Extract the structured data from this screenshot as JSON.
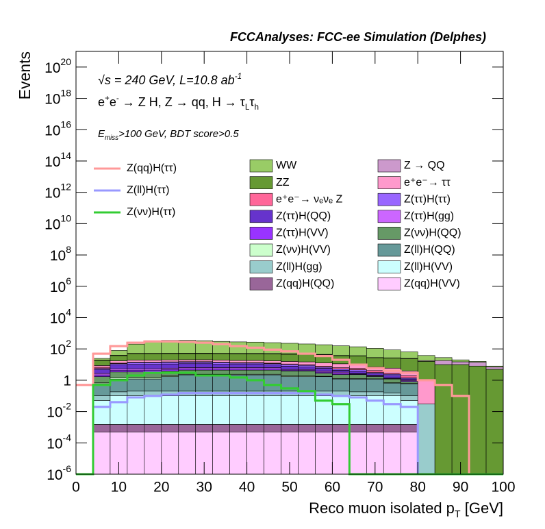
{
  "chart_data": {
    "type": "stacked-histogram",
    "title": "FCCAnalyses: FCC-ee Simulation (Delphes)",
    "annotations": [
      [
        {
          "t": "√s = 240 GeV, L=10.8 ab"
        },
        {
          "t": "-1",
          "sup": true
        }
      ],
      [
        {
          "t": "e"
        },
        {
          "t": "+",
          "sup": true
        },
        {
          "t": "e"
        },
        {
          "t": "-",
          "sup": true
        },
        {
          "t": " → Z H, Z  → qq, H  → τ"
        },
        {
          "t": "L",
          "sub": true
        },
        {
          "t": "τ"
        },
        {
          "t": "h",
          "sub": true
        }
      ],
      [
        {
          "t": "E"
        },
        {
          "t": "miss",
          "sub": true
        },
        {
          "t": ">100 GeV, BDT score>0.5"
        }
      ]
    ],
    "y_label": "Events",
    "x_label": [
      {
        "t": "Reco muon isolated p"
      },
      {
        "t": "T",
        "sub": true
      },
      {
        "t": " [GeV]"
      }
    ],
    "log_y": true,
    "xlim": [
      0,
      100
    ],
    "xticks": [
      0,
      10,
      20,
      30,
      40,
      50,
      60,
      70,
      80,
      90,
      100
    ],
    "ylim": [
      1e-06,
      1e+21
    ],
    "yticks": [
      {
        "value": 1e-06,
        "label": "10",
        "exp": "-6"
      },
      {
        "value": 0.0001,
        "label": "10",
        "exp": "-4"
      },
      {
        "value": 0.01,
        "label": "10",
        "exp": "-2"
      },
      1,
      {
        "value": 100.0,
        "label": "10",
        "exp": "2"
      },
      {
        "value": 10000.0,
        "label": "10",
        "exp": "4"
      },
      {
        "value": 1000000.0,
        "label": "10",
        "exp": "6"
      },
      {
        "value": 100000000.0,
        "label": "10",
        "exp": "8"
      },
      {
        "value": 10000000000.0,
        "label": "10",
        "exp": "10"
      },
      {
        "value": 1000000000000.0,
        "label": "10",
        "exp": "12"
      },
      {
        "value": 100000000000000.0,
        "label": "10",
        "exp": "14"
      },
      {
        "value": 1e+16,
        "label": "10",
        "exp": "16"
      },
      {
        "value": 1e+18,
        "label": "10",
        "exp": "18"
      },
      {
        "value": 1e+20,
        "label": "10",
        "exp": "20"
      }
    ],
    "bins": [
      0,
      4,
      8,
      12,
      16,
      20,
      24,
      28,
      32,
      36,
      40,
      44,
      48,
      52,
      56,
      60,
      64,
      68,
      72,
      76,
      80,
      84,
      88,
      92,
      96,
      100
    ],
    "series": [
      {
        "name": "WW",
        "color": "#99cc66",
        "style": "stack",
        "values": [
          0,
          5,
          40,
          150,
          250,
          300,
          300,
          280,
          250,
          230,
          220,
          200,
          180,
          160,
          140,
          120,
          100,
          80,
          60,
          40,
          20,
          10,
          5,
          2,
          1
        ]
      },
      {
        "name": "Z → QQ",
        "color": "#cc99cc",
        "style": "stack",
        "values": [
          0,
          1,
          2,
          3,
          3,
          3,
          3,
          3,
          3,
          3,
          3,
          3,
          3,
          2,
          2,
          2,
          2,
          1,
          1,
          1,
          2,
          8,
          5,
          6,
          2
        ]
      },
      {
        "name": "ZZ",
        "color": "#669933",
        "style": "stack",
        "values": [
          0,
          10,
          20,
          30,
          30,
          30,
          30,
          30,
          30,
          30,
          30,
          30,
          30,
          30,
          30,
          25,
          25,
          20,
          20,
          20,
          15,
          10,
          10,
          8,
          5
        ]
      },
      {
        "name": "e⁺e⁻→ ττ",
        "color": "#ff99cc",
        "style": "stack",
        "values": [
          0,
          2,
          5,
          5,
          5,
          5,
          5,
          5,
          5,
          5,
          5,
          5,
          5,
          5,
          5,
          5,
          4,
          3,
          3,
          2,
          1,
          0,
          0,
          0,
          0
        ]
      },
      {
        "name": "e⁺e⁻→ νₑνₑ Z",
        "color": "#ff6699",
        "style": "stack",
        "values": [
          0,
          1,
          1,
          1,
          1,
          1,
          1,
          1,
          1,
          1,
          1,
          1,
          1,
          1,
          1,
          1,
          1,
          1,
          0.5,
          0.5,
          0,
          0,
          0,
          0,
          0
        ]
      },
      {
        "name": "Z(ττ)H(ττ)",
        "color": "#9966ff",
        "style": "stack",
        "values": [
          0,
          1,
          2,
          3,
          3,
          3,
          3,
          3,
          3,
          2,
          2,
          2,
          2,
          2,
          1,
          1,
          1,
          0.5,
          0.5,
          0.2,
          0,
          0,
          0,
          0,
          0
        ]
      },
      {
        "name": "Z(ττ)H(QQ)",
        "color": "#6633cc",
        "style": "stack",
        "values": [
          0,
          2,
          4,
          5,
          5,
          5,
          5,
          5,
          4,
          4,
          4,
          3,
          3,
          2,
          2,
          1,
          1,
          0.5,
          0.5,
          0.2,
          0,
          0,
          0,
          0,
          0
        ]
      },
      {
        "name": "Z(ττ)H(gg)",
        "color": "#cc66ff",
        "style": "stack",
        "values": [
          0,
          0.5,
          1,
          1,
          1,
          1,
          1,
          1,
          1,
          1,
          1,
          1,
          0.5,
          0.5,
          0.5,
          0.5,
          0.2,
          0.2,
          0.1,
          0.1,
          0,
          0,
          0,
          0,
          0
        ]
      },
      {
        "name": "Z(ττ)H(VV)",
        "color": "#9933ff",
        "style": "stack",
        "values": [
          0,
          0.5,
          1,
          1,
          1,
          1,
          1,
          1,
          1,
          1,
          1,
          1,
          0.5,
          0.5,
          0.5,
          0.5,
          0.2,
          0.2,
          0.1,
          0.1,
          0,
          0,
          0,
          0,
          0
        ]
      },
      {
        "name": "Z(νν)H(QQ)",
        "color": "#669966",
        "style": "stack",
        "values": [
          0,
          1,
          2,
          2,
          2,
          2,
          2,
          2,
          2,
          2,
          2,
          2,
          2,
          2,
          1,
          1,
          1,
          0.5,
          0.5,
          0.2,
          0,
          0,
          0,
          0,
          0
        ]
      },
      {
        "name": "Z(νν)H(VV)",
        "color": "#ccffcc",
        "style": "stack",
        "values": [
          0,
          0.1,
          0.2,
          0.2,
          0.2,
          0.2,
          0.2,
          0.2,
          0.2,
          0.2,
          0.2,
          0.2,
          0.2,
          0.2,
          0.1,
          0.1,
          0.1,
          0.05,
          0.05,
          0.02,
          0,
          0,
          0,
          0,
          0
        ]
      },
      {
        "name": "Z(ll)H(QQ)",
        "color": "#669999",
        "style": "stack",
        "values": [
          0,
          0.5,
          1,
          1,
          1,
          1.5,
          2,
          2,
          2,
          2,
          2,
          2,
          1.5,
          1.5,
          1.5,
          1,
          1,
          1,
          0.5,
          0.5,
          0,
          0,
          0,
          0,
          0
        ]
      },
      {
        "name": "Z(ll)H(gg)",
        "color": "#99cccc",
        "style": "stack",
        "values": [
          0,
          0.05,
          0.08,
          0.1,
          0.1,
          0.1,
          0.1,
          0.1,
          0.1,
          0.1,
          0.1,
          0.1,
          0.1,
          0.1,
          0.1,
          0.1,
          0.08,
          0.08,
          0.05,
          0.05,
          0.03,
          0,
          0,
          0,
          0
        ]
      },
      {
        "name": "Z(ll)H(VV)",
        "color": "#ccffff",
        "style": "stack",
        "values": [
          0,
          0.05,
          0.1,
          0.1,
          0.1,
          0.1,
          0.1,
          0.1,
          0.1,
          0.1,
          0.1,
          0.1,
          0.1,
          0.1,
          0.1,
          0.1,
          0.1,
          0.1,
          0.1,
          0.05,
          0,
          0,
          0,
          0,
          0
        ]
      },
      {
        "name": "Z(qq)H(QQ)",
        "color": "#996699",
        "style": "stack",
        "values": [
          0,
          0.001,
          0.001,
          0.001,
          0.001,
          0.001,
          0.001,
          0.001,
          0.001,
          0.001,
          0.001,
          0.001,
          0.001,
          0.001,
          0.001,
          0.001,
          0.001,
          0.001,
          0.001,
          0.001,
          0,
          0,
          0,
          0,
          0
        ]
      },
      {
        "name": "Z(qq)H(VV)",
        "color": "#ffccff",
        "style": "stack",
        "values": [
          0,
          0.0005,
          0.0005,
          0.0005,
          0.0005,
          0.0005,
          0.0005,
          0.0005,
          0.0005,
          0.0005,
          0.0005,
          0.0005,
          0.0005,
          0.0005,
          0.0005,
          0.0005,
          0.0005,
          0.0005,
          0.0005,
          0.0005,
          0,
          0,
          0,
          0,
          0
        ]
      },
      {
        "name": "Z(qq)H(ττ)",
        "color": "#ff9999",
        "style": "line",
        "values": [
          0.5,
          50,
          150,
          250,
          300,
          300,
          280,
          250,
          200,
          150,
          120,
          90,
          70,
          50,
          35,
          20,
          10,
          6,
          4,
          3,
          1,
          0.5,
          0.1,
          0,
          0
        ]
      },
      {
        "name": "Z(ll)H(ττ)",
        "color": "#9999ff",
        "style": "line",
        "values": [
          0,
          0.02,
          0.04,
          0.08,
          0.1,
          0.12,
          0.15,
          0.15,
          0.15,
          0.15,
          0.15,
          0.15,
          0.15,
          0.15,
          0.12,
          0.1,
          0.08,
          0.05,
          0.03,
          0.02,
          0,
          0,
          0,
          0,
          0
        ]
      },
      {
        "name": "Z(νν)H(ττ)",
        "color": "#33cc33",
        "style": "line",
        "values": [
          0,
          0.5,
          1,
          2,
          3,
          3,
          3,
          2,
          2,
          1.5,
          1,
          0.5,
          0.3,
          0.2,
          0.05,
          0.03,
          0,
          0,
          0,
          0,
          0,
          0,
          0,
          0,
          0
        ]
      }
    ]
  }
}
